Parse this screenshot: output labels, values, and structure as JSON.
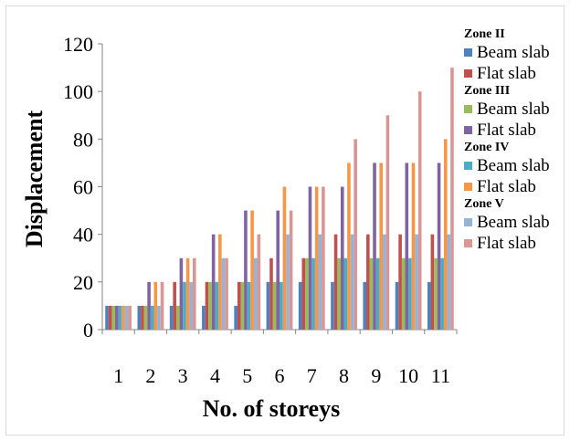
{
  "chart_data": {
    "type": "bar",
    "xlabel": "No. of storeys",
    "ylabel": "Displacement",
    "ylim": [
      0,
      120
    ],
    "yticks": [
      0,
      20,
      40,
      60,
      80,
      100,
      120
    ],
    "categories": [
      "1",
      "2",
      "3",
      "4",
      "5",
      "6",
      "7",
      "8",
      "9",
      "10",
      "11"
    ],
    "series": [
      {
        "name": "Beam slab",
        "zone": "Zone II",
        "color": "#4f81bd",
        "values": [
          10,
          10,
          10,
          10,
          10,
          20,
          20,
          20,
          20,
          20,
          20
        ]
      },
      {
        "name": "Flat slab",
        "zone": "Zone II",
        "color": "#c0504d",
        "values": [
          10,
          10,
          20,
          20,
          20,
          30,
          30,
          40,
          40,
          40,
          40
        ]
      },
      {
        "name": "Beam slab",
        "zone": "Zone III",
        "color": "#9bbb59",
        "values": [
          10,
          10,
          10,
          20,
          20,
          20,
          30,
          30,
          30,
          30,
          30
        ]
      },
      {
        "name": "Flat slab",
        "zone": "Zone III",
        "color": "#8064a2",
        "values": [
          10,
          20,
          30,
          40,
          50,
          50,
          60,
          60,
          70,
          70,
          70
        ]
      },
      {
        "name": "Beam slab",
        "zone": "Zone IV",
        "color": "#4bacc6",
        "values": [
          10,
          10,
          20,
          20,
          20,
          20,
          30,
          30,
          30,
          30,
          30
        ]
      },
      {
        "name": "Flat slab",
        "zone": "Zone IV",
        "color": "#f79646",
        "values": [
          10,
          20,
          30,
          40,
          50,
          60,
          60,
          70,
          70,
          70,
          80
        ]
      },
      {
        "name": "Beam slab",
        "zone": "Zone V",
        "color": "#95b3d7",
        "values": [
          10,
          10,
          20,
          30,
          30,
          40,
          40,
          40,
          40,
          40,
          40
        ]
      },
      {
        "name": "Flat slab",
        "zone": "Zone V",
        "color": "#d99694",
        "values": [
          10,
          20,
          30,
          30,
          40,
          50,
          60,
          80,
          90,
          100,
          110
        ]
      }
    ],
    "legend": [
      {
        "zone": "Zone II",
        "items": [
          {
            "label": "Beam slab",
            "color": "#4f81bd"
          },
          {
            "label": "Flat slab",
            "color": "#c0504d"
          }
        ]
      },
      {
        "zone": "Zone III",
        "items": [
          {
            "label": "Beam slab",
            "color": "#9bbb59"
          },
          {
            "label": "Flat slab",
            "color": "#8064a2"
          }
        ]
      },
      {
        "zone": "Zone IV",
        "items": [
          {
            "label": "Beam slab",
            "color": "#4bacc6"
          },
          {
            "label": "Flat slab",
            "color": "#f79646"
          }
        ]
      },
      {
        "zone": "Zone V",
        "items": [
          {
            "label": "Beam slab",
            "color": "#95b3d7"
          },
          {
            "label": "Flat slab",
            "color": "#d99694"
          }
        ]
      }
    ],
    "legend_position": "right",
    "grid": false
  }
}
